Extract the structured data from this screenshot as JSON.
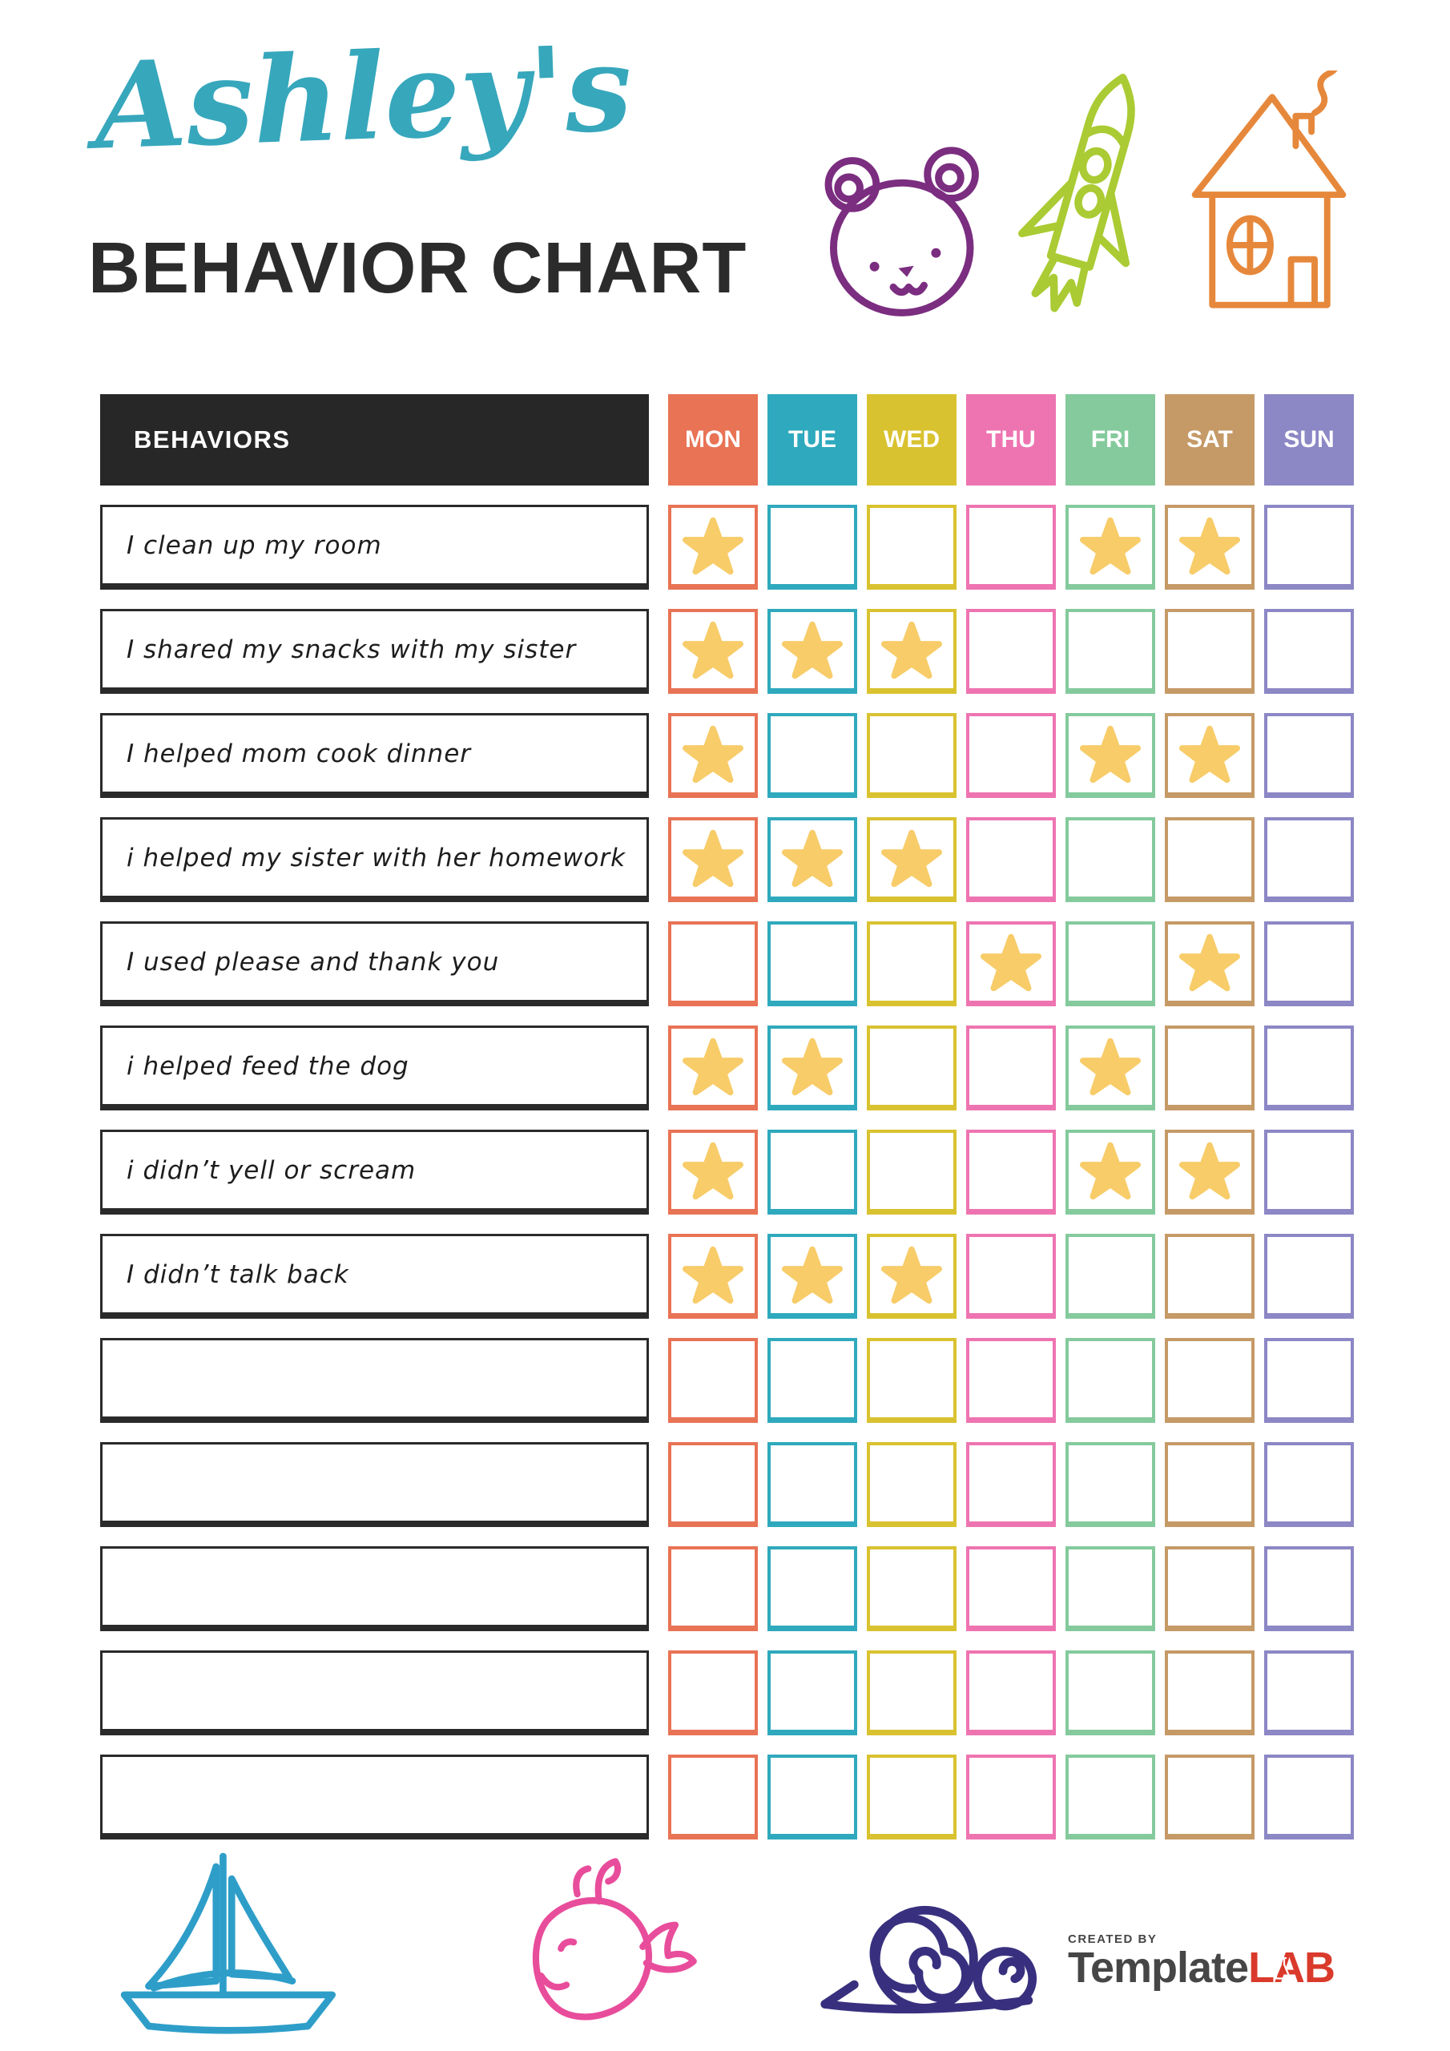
{
  "header": {
    "name": "Ashley's",
    "title": "BEHAVIOR CHART",
    "name_color": "#37A7BC",
    "title_color": "#2B2B2B"
  },
  "table": {
    "behaviors_header": "BEHAVIORS",
    "header_bg": "#272727",
    "star_color": "#F7CC69",
    "days": [
      {
        "label": "MON",
        "color": "#E87355"
      },
      {
        "label": "TUE",
        "color": "#2FA9BD"
      },
      {
        "label": "WED",
        "color": "#D9C230"
      },
      {
        "label": "THU",
        "color": "#EE74B1"
      },
      {
        "label": "FRI",
        "color": "#84CA9D"
      },
      {
        "label": "SAT",
        "color": "#C59A67"
      },
      {
        "label": "SUN",
        "color": "#8C87C5"
      }
    ],
    "rows": [
      {
        "behavior": "I clean up my room",
        "stars": [
          1,
          0,
          0,
          0,
          1,
          1,
          0
        ]
      },
      {
        "behavior": "I shared my snacks with my sister",
        "stars": [
          1,
          1,
          1,
          0,
          0,
          0,
          0
        ]
      },
      {
        "behavior": "I helped mom cook dinner",
        "stars": [
          1,
          0,
          0,
          0,
          1,
          1,
          0
        ]
      },
      {
        "behavior": "i helped my sister with her homework",
        "stars": [
          1,
          1,
          1,
          0,
          0,
          0,
          0
        ]
      },
      {
        "behavior": "I used please and thank you",
        "stars": [
          0,
          0,
          0,
          1,
          0,
          1,
          0
        ]
      },
      {
        "behavior": "i helped feed the dog",
        "stars": [
          1,
          1,
          0,
          0,
          1,
          0,
          0
        ]
      },
      {
        "behavior": "i didn’t yell or scream",
        "stars": [
          1,
          0,
          0,
          0,
          1,
          1,
          0
        ]
      },
      {
        "behavior": "I didn’t talk back",
        "stars": [
          1,
          1,
          1,
          0,
          0,
          0,
          0
        ]
      },
      {
        "behavior": "",
        "stars": [
          0,
          0,
          0,
          0,
          0,
          0,
          0
        ]
      },
      {
        "behavior": "",
        "stars": [
          0,
          0,
          0,
          0,
          0,
          0,
          0
        ]
      },
      {
        "behavior": "",
        "stars": [
          0,
          0,
          0,
          0,
          0,
          0,
          0
        ]
      },
      {
        "behavior": "",
        "stars": [
          0,
          0,
          0,
          0,
          0,
          0,
          0
        ]
      },
      {
        "behavior": "",
        "stars": [
          0,
          0,
          0,
          0,
          0,
          0,
          0
        ]
      }
    ]
  },
  "doodles": {
    "bear_color": "#7B2D80",
    "rocket_color": "#AACB33",
    "house_color": "#E6883B",
    "sailboat_color": "#2E9EC9",
    "whale_color": "#E84D9B",
    "snail_color": "#38307E"
  },
  "branding": {
    "created_by": "CREATED BY",
    "brand_name_dark": "Template",
    "brand_name_red": "LAB",
    "dark_color": "#464646",
    "red_color": "#D93A2B"
  }
}
